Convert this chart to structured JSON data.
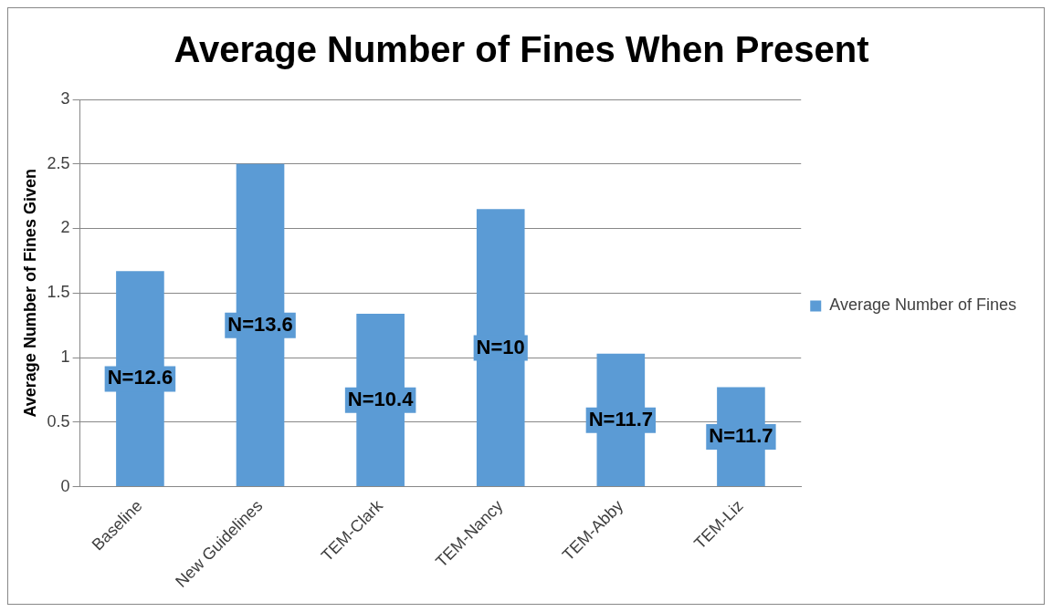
{
  "chart_data": {
    "type": "bar",
    "title": "Average Number of Fines When Present",
    "ylabel": "Average Number of Fines Given",
    "categories": [
      "Baseline",
      "New Guidelines",
      "TEM-Clark",
      "TEM-Nancy",
      "TEM-Abby",
      "TEM-Liz"
    ],
    "series": [
      {
        "name": "Average Number of Fines",
        "color": "#5b9bd5",
        "values": [
          1.67,
          2.5,
          1.34,
          2.15,
          1.03,
          0.77
        ]
      }
    ],
    "ylim": [
      0,
      3
    ],
    "yticks": [
      0,
      0.5,
      1,
      1.5,
      2,
      2.5,
      3
    ],
    "grid": "y",
    "legend": "right",
    "annotations": [
      "N=12.6",
      "N=13.6",
      "N=10.4",
      "N=10",
      "N=11.7",
      "N=11.7"
    ]
  }
}
